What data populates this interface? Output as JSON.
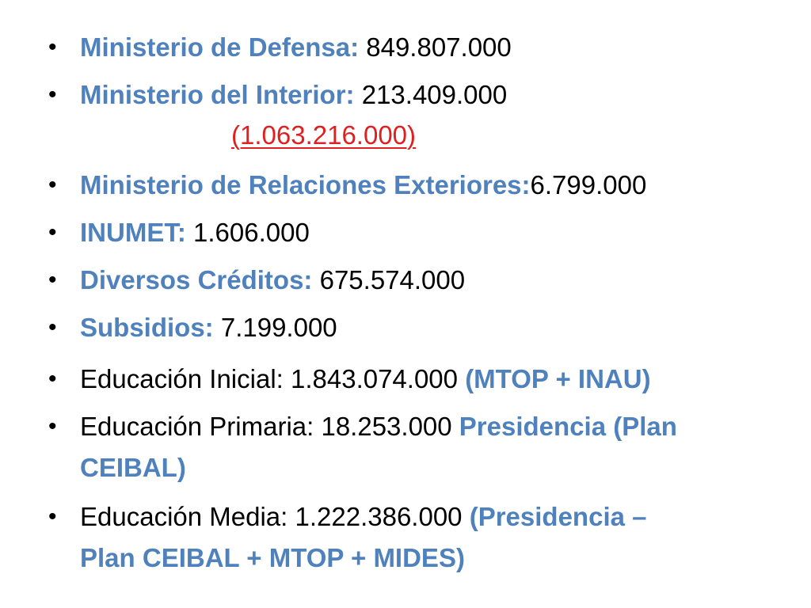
{
  "colors": {
    "label": "#4f81bd",
    "value": "#000000",
    "total": "#e02020"
  },
  "bullet_symbol": "•",
  "items": [
    {
      "label": "Ministerio de Defensa:",
      "value": " 849.807.000"
    },
    {
      "label": "Ministerio del Interior:",
      "value": " 213.409.000"
    },
    {
      "label": "Ministerio de Relaciones Exteriores:",
      "value": "6.799.000"
    },
    {
      "label": "INUMET:",
      "value": " 1.606.000"
    },
    {
      "label": "Diversos Créditos:",
      "value": " 675.574.000"
    },
    {
      "label": "Subsidios:",
      "value": " 7.199.000"
    },
    {
      "text": "Educación Inicial: 1.843.074.000 ",
      "note": "(MTOP + INAU)"
    },
    {
      "text": "Educación Primaria: 18.253.000 ",
      "note": "Presidencia (Plan",
      "note_line2": "CEIBAL)"
    },
    {
      "text": "Educación Media: 1.222.386.000 ",
      "note": "(Presidencia –",
      "note_line2": "Plan CEIBAL + MTOP + MIDES)"
    }
  ],
  "subtotal": "(1.063.216.000)"
}
